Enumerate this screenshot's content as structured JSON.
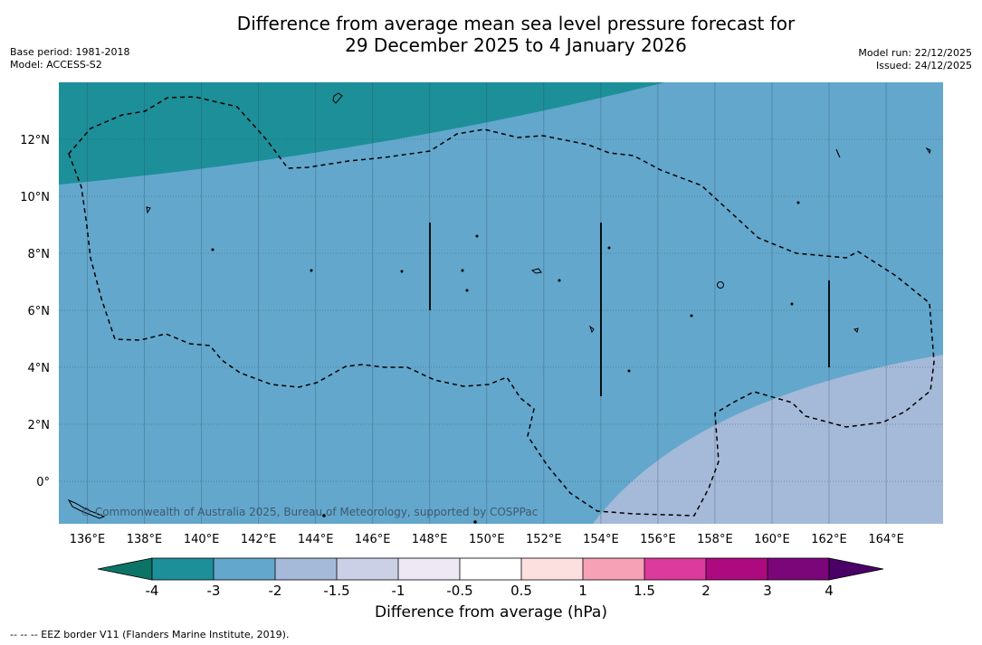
{
  "title": {
    "line1": "Difference from average mean sea level pressure forecast for",
    "line2": "29 December 2025 to 4 January 2026"
  },
  "meta_left": {
    "base_period": "Base period: 1981-2018",
    "model": "Model: ACCESS-S2"
  },
  "meta_right": {
    "model_run": "Model run: 22/12/2025",
    "issued": "Issued: 24/12/2025"
  },
  "map": {
    "lon_range": [
      135.0,
      166.0
    ],
    "lat_range": [
      -1.5,
      14.0
    ],
    "lon_ticks": [
      136,
      138,
      140,
      142,
      144,
      146,
      148,
      150,
      152,
      154,
      156,
      158,
      160,
      162,
      164
    ],
    "lon_tick_labels": [
      "136°E",
      "138°E",
      "140°E",
      "142°E",
      "144°E",
      "146°E",
      "148°E",
      "150°E",
      "152°E",
      "154°E",
      "156°E",
      "158°E",
      "160°E",
      "162°E",
      "164°E"
    ],
    "lat_ticks": [
      0,
      2,
      4,
      6,
      8,
      10,
      12
    ],
    "lat_tick_labels": [
      "0°",
      "2°N",
      "4°N",
      "6°N",
      "8°N",
      "10°N",
      "12°N"
    ],
    "copyright": "© Commonwealth of Australia 2025, Bureau of Meteorology, supported by COSPPac",
    "fields": [
      {
        "name": "band -4 to -3 hPa (north-west)",
        "color": "#1d8f99"
      },
      {
        "name": "band -3 to -2 hPa (central)",
        "color": "#63a7cc"
      },
      {
        "name": "band -2 to -1.5 hPa (south-east)",
        "color": "#a5b9d9"
      }
    ]
  },
  "colorbar": {
    "ticks": [
      "-4",
      "-3",
      "-2",
      "-1.5",
      "-1",
      "-0.5",
      "0.5",
      "1",
      "1.5",
      "2",
      "3",
      "4"
    ],
    "colors": [
      "#1d8f99",
      "#63a7cc",
      "#a5b9d9",
      "#ccd0e6",
      "#ede8f3",
      "#ffffff",
      "#fce0e0",
      "#f6a1b6",
      "#dc3a9c",
      "#ad0a80",
      "#7b0679"
    ],
    "under_color": "#0c7466",
    "over_color": "#4a0066",
    "title": "Difference from average (hPa)"
  },
  "footer": "--  --  -- EEZ border V11 (Flanders Marine Institute, 2019)."
}
